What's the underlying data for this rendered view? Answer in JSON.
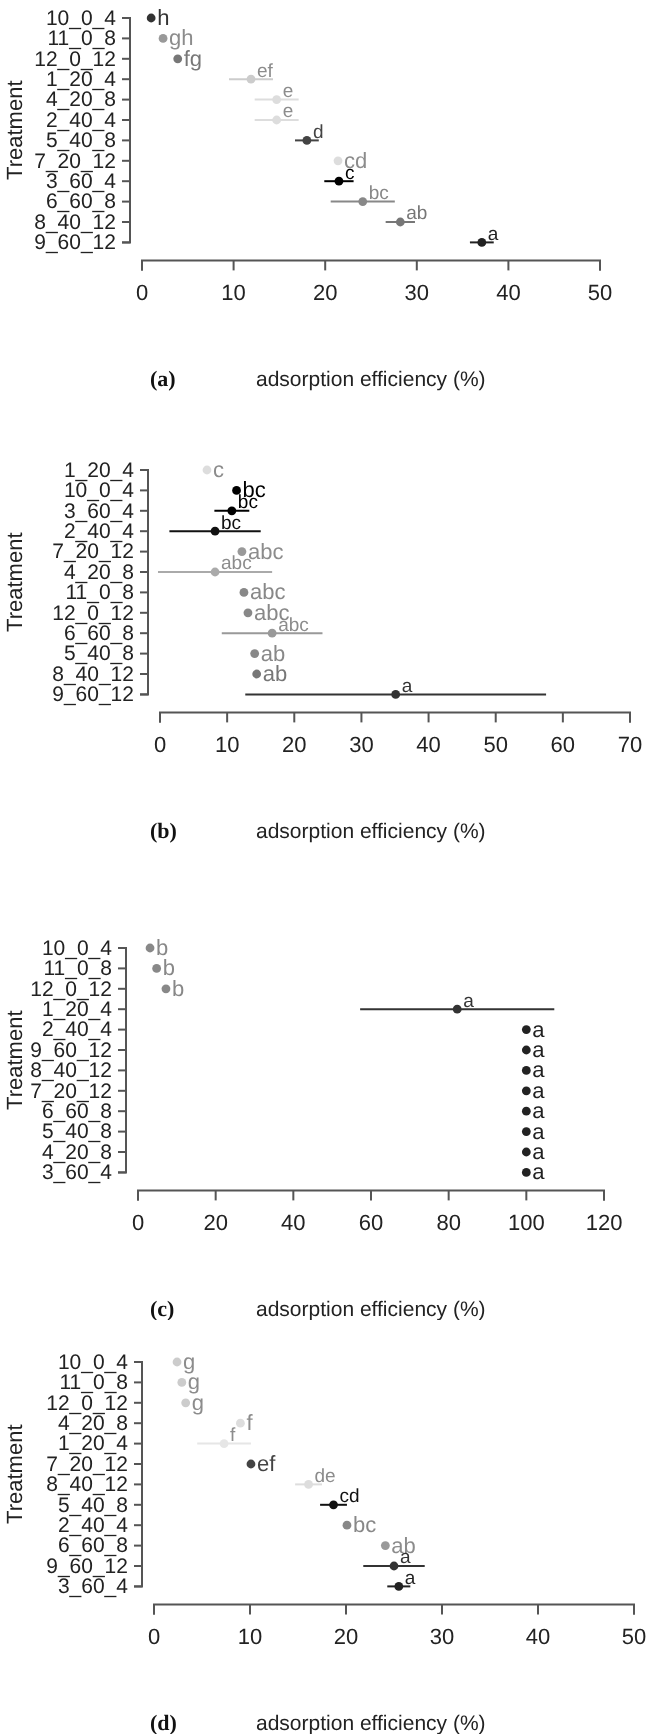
{
  "chart_data": [
    {
      "type": "scatter",
      "orientation": "horizontal",
      "ylabel": "Treatment",
      "xlabel": "adsorption efficiency (%)",
      "annotations": [
        "(a)"
      ],
      "marker": "circle",
      "grid": false,
      "categories": [
        "10_0_4",
        "11_0_8",
        "12_0_12",
        "1_20_4",
        "4_20_8",
        "2_40_4",
        "5_40_8",
        "7_20_12",
        "3_60_4",
        "6_60_8",
        "8_40_12",
        "9_60_12"
      ],
      "values": [
        1.0,
        2.3,
        3.9,
        11.9,
        14.7,
        14.7,
        18.0,
        21.4,
        21.5,
        24.1,
        28.2,
        37.1
      ],
      "errors": [
        null,
        null,
        null,
        2.4,
        2.4,
        2.4,
        1.3,
        null,
        1.6,
        3.5,
        1.6,
        1.3
      ],
      "colors": [
        "#333333",
        "#999999",
        "#777777",
        "#cccccc",
        "#dddddd",
        "#dddddd",
        "#444444",
        "#dddddd",
        "#000000",
        "#888888",
        "#777777",
        "#222222"
      ],
      "value_labels": [
        "h",
        "gh",
        "fg",
        "ef",
        "e",
        "e",
        "d",
        "cd",
        "c",
        "bc",
        "ab",
        "a"
      ],
      "xlim": [
        0,
        50
      ],
      "xticks": [
        0,
        10,
        20,
        30,
        40,
        50
      ]
    },
    {
      "type": "scatter",
      "orientation": "horizontal",
      "ylabel": "Treatment",
      "xlabel": "adsorption efficiency (%)",
      "annotations": [
        "(b)"
      ],
      "marker": "circle",
      "grid": false,
      "categories": [
        "1_20_4",
        "10_0_4",
        "3_60_4",
        "2_40_4",
        "7_20_12",
        "4_20_8",
        "11_0_8",
        "12_0_12",
        "6_60_8",
        "5_40_8",
        "8_40_12",
        "9_60_12"
      ],
      "values": [
        7.0,
        11.4,
        10.7,
        8.2,
        12.2,
        8.2,
        12.5,
        13.1,
        16.7,
        14.1,
        14.4,
        35.1
      ],
      "errors": [
        null,
        null,
        2.6,
        6.8,
        null,
        8.5,
        null,
        null,
        7.5,
        null,
        null,
        22.4
      ],
      "colors": [
        "#dddddd",
        "#000000",
        "#000000",
        "#111111",
        "#999999",
        "#aaaaaa",
        "#888888",
        "#888888",
        "#999999",
        "#888888",
        "#777777",
        "#333333"
      ],
      "value_labels": [
        "c",
        "bc",
        "bc",
        "bc",
        "abc",
        "abc",
        "abc",
        "abc",
        "abc",
        "ab",
        "ab",
        "a"
      ],
      "xlim": [
        0,
        70
      ],
      "xticks": [
        0,
        10,
        20,
        30,
        40,
        50,
        60,
        70
      ]
    },
    {
      "type": "scatter",
      "orientation": "horizontal",
      "ylabel": "Treatment",
      "xlabel": "adsorption efficiency (%)",
      "annotations": [
        "(c)"
      ],
      "marker": "circle",
      "grid": false,
      "categories": [
        "10_0_4",
        "11_0_8",
        "12_0_12",
        "1_20_4",
        "2_40_4",
        "9_60_12",
        "8_40_12",
        "7_20_12",
        "6_60_8",
        "5_40_8",
        "4_20_8",
        "3_60_4"
      ],
      "values": [
        3.1,
        4.8,
        7.2,
        82.2,
        100,
        100,
        100,
        100,
        100,
        100,
        100,
        100
      ],
      "errors": [
        null,
        null,
        null,
        25,
        null,
        null,
        null,
        null,
        null,
        null,
        null,
        null
      ],
      "colors": [
        "#888888",
        "#888888",
        "#888888",
        "#333333",
        "#222222",
        "#222222",
        "#222222",
        "#222222",
        "#222222",
        "#222222",
        "#222222",
        "#222222"
      ],
      "value_labels": [
        "b",
        "b",
        "b",
        "a",
        "a",
        "a",
        "a",
        "a",
        "a",
        "a",
        "a",
        "a"
      ],
      "xlim": [
        0,
        120
      ],
      "xticks": [
        0,
        20,
        40,
        60,
        80,
        100,
        120
      ]
    },
    {
      "type": "scatter",
      "orientation": "horizontal",
      "ylabel": "Treatment",
      "xlabel": "adsorption efficiency (%)",
      "annotations": [
        "(d)"
      ],
      "marker": "circle",
      "grid": false,
      "categories": [
        "10_0_4",
        "11_0_8",
        "12_0_12",
        "4_20_8",
        "1_20_4",
        "7_20_12",
        "8_40_12",
        "5_40_8",
        "2_40_4",
        "6_60_8",
        "9_60_12",
        "3_60_4"
      ],
      "values": [
        2.4,
        2.9,
        3.3,
        9.0,
        7.3,
        10.1,
        16.1,
        18.7,
        20.1,
        24.1,
        25.0,
        25.5
      ],
      "errors": [
        null,
        null,
        null,
        null,
        2.8,
        null,
        1.4,
        1.4,
        null,
        null,
        3.2,
        1.2
      ],
      "colors": [
        "#cccccc",
        "#cccccc",
        "#cccccc",
        "#dddddd",
        "#e6e6e6",
        "#444444",
        "#dddddd",
        "#111111",
        "#888888",
        "#999999",
        "#333333",
        "#222222"
      ],
      "value_labels": [
        "g",
        "g",
        "g",
        "f",
        "f",
        "ef",
        "de",
        "cd",
        "bc",
        "ab",
        "a",
        "a"
      ],
      "xlim": [
        0,
        50
      ],
      "xticks": [
        0,
        10,
        20,
        30,
        40,
        50
      ]
    }
  ]
}
